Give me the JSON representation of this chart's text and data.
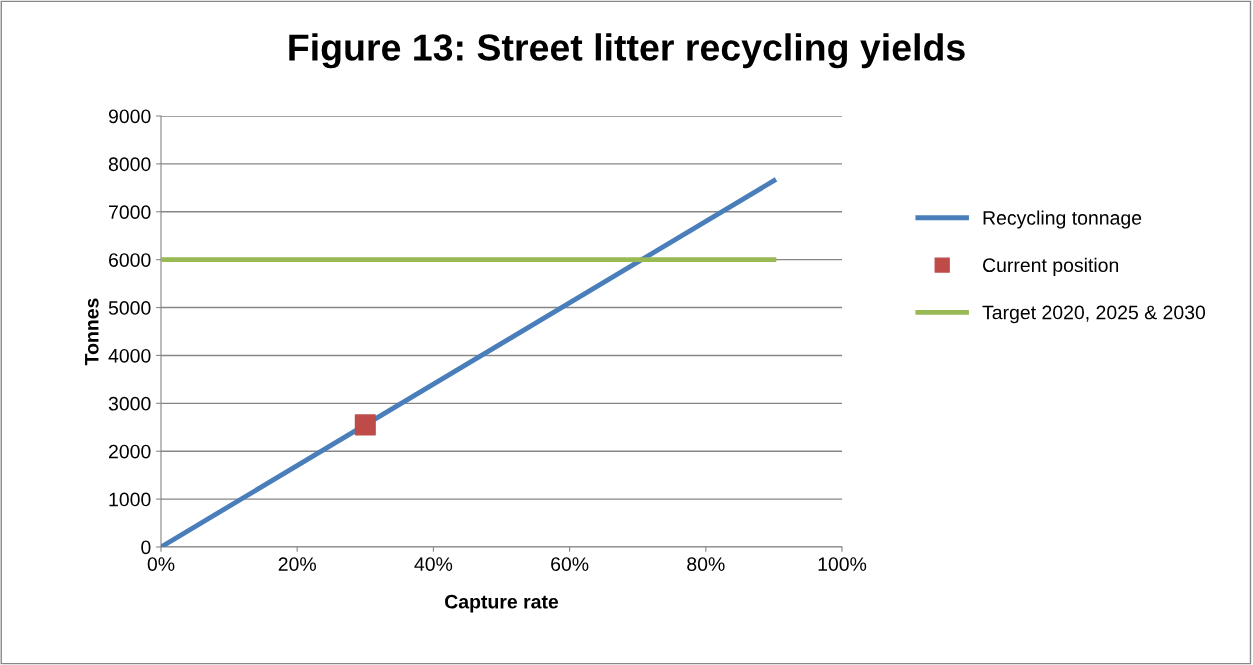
{
  "chart_data": {
    "type": "line",
    "title": "Figure 13: Street litter recycling yields",
    "xlabel": "Capture rate",
    "ylabel": "Tonnes",
    "series": [
      {
        "name": "Recycling tonnage",
        "color": "#4a7ebb",
        "x": [
          0,
          90
        ],
        "values": [
          0,
          7650
        ]
      },
      {
        "name": "Current position",
        "type": "scatter",
        "marker": "square",
        "color": "#be4b48",
        "x": [
          30
        ],
        "values": [
          2550
        ]
      },
      {
        "name": "Target 2020, 2025 & 2030",
        "color": "#98b954",
        "x": [
          0,
          90
        ],
        "values": [
          6000,
          6000
        ]
      }
    ],
    "xlim": [
      0,
      100
    ],
    "xticks": [
      {
        "value": 0,
        "label": "0%"
      },
      {
        "value": 20,
        "label": "20%"
      },
      {
        "value": 40,
        "label": "40%"
      },
      {
        "value": 60,
        "label": "60%"
      },
      {
        "value": 80,
        "label": "80%"
      },
      {
        "value": 100,
        "label": "100%"
      }
    ],
    "ylim": [
      0,
      9000
    ],
    "yticks": [
      0,
      1000,
      2000,
      3000,
      4000,
      5000,
      6000,
      7000,
      8000,
      9000
    ],
    "grid": "y",
    "legend": "right"
  }
}
